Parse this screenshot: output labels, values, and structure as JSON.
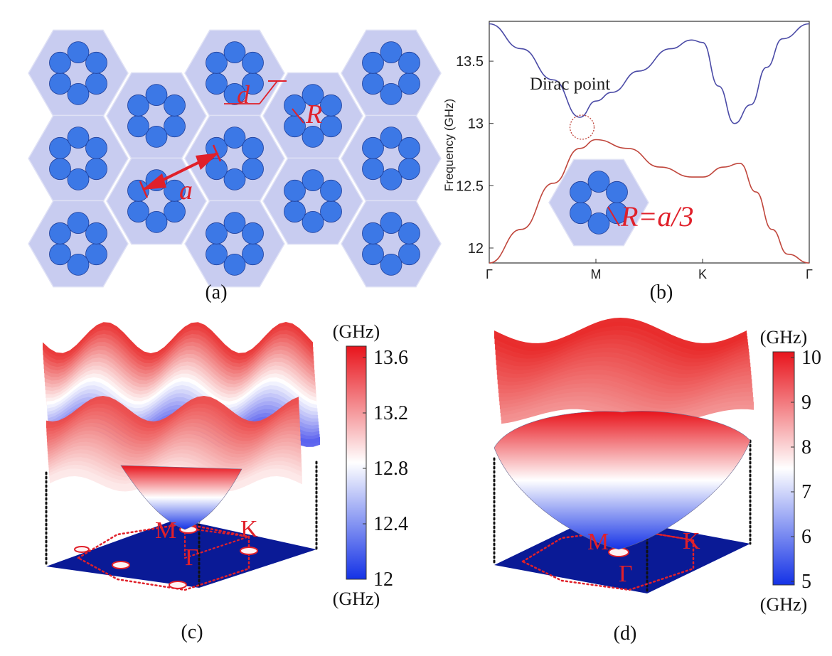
{
  "panels": {
    "a": {
      "caption": "(a)",
      "labels": {
        "a": "a",
        "d": "d",
        "R": "R"
      }
    },
    "b": {
      "caption": "(b)",
      "annotation": "Dirac point",
      "inset_label": "R=a/3",
      "colors": {
        "upper": "#4a4aa6",
        "lower": "#c0463c",
        "cell": "#c8ccf0",
        "rod": "#3c78e6"
      }
    },
    "c": {
      "caption": "(c)",
      "colorbar": {
        "unit_top": "(GHz)",
        "unit_bottom": "(GHz)",
        "ticks": [
          "13.6",
          "13.2",
          "12.8",
          "12.4",
          "12"
        ]
      },
      "points": {
        "M": "M",
        "K": "K",
        "G": "Γ"
      }
    },
    "d": {
      "caption": "(d)",
      "colorbar": {
        "unit_top": "(GHz)",
        "unit_bottom": "(GHz)",
        "ticks": [
          "10",
          "9",
          "8",
          "7",
          "6",
          "5"
        ]
      },
      "points": {
        "M": "M",
        "K": "K",
        "G": "Γ"
      }
    }
  },
  "chart_data": {
    "type": "line",
    "title": "",
    "xlabel": "",
    "ylabel": "Frequency (GHz)",
    "x_ticks": [
      "Γ",
      "M",
      "K",
      "Γ"
    ],
    "x_positions": [
      0,
      1,
      2,
      3
    ],
    "y_ticks": [
      "12",
      "12.5",
      "13",
      "13.5"
    ],
    "ylim": [
      11.88,
      13.82
    ],
    "series": [
      {
        "x": [
          0,
          0.3,
          0.6,
          0.85,
          1.0,
          1.15,
          1.4,
          1.7,
          1.9,
          2.0,
          2.15,
          2.3,
          2.45,
          2.6,
          2.75,
          3.0
        ],
        "values": [
          13.8,
          13.6,
          13.35,
          13.05,
          13.18,
          13.25,
          13.42,
          13.6,
          13.67,
          13.65,
          13.3,
          13.0,
          13.15,
          13.45,
          13.68,
          13.8
        ]
      },
      {
        "x": [
          0,
          0.3,
          0.6,
          0.85,
          1.0,
          1.3,
          1.6,
          1.9,
          2.0,
          2.2,
          2.35,
          2.5,
          2.65,
          2.8,
          3.0
        ],
        "values": [
          11.88,
          12.15,
          12.52,
          12.8,
          12.87,
          12.8,
          12.65,
          12.57,
          12.57,
          12.65,
          12.68,
          12.45,
          12.15,
          11.95,
          11.88
        ]
      }
    ]
  }
}
